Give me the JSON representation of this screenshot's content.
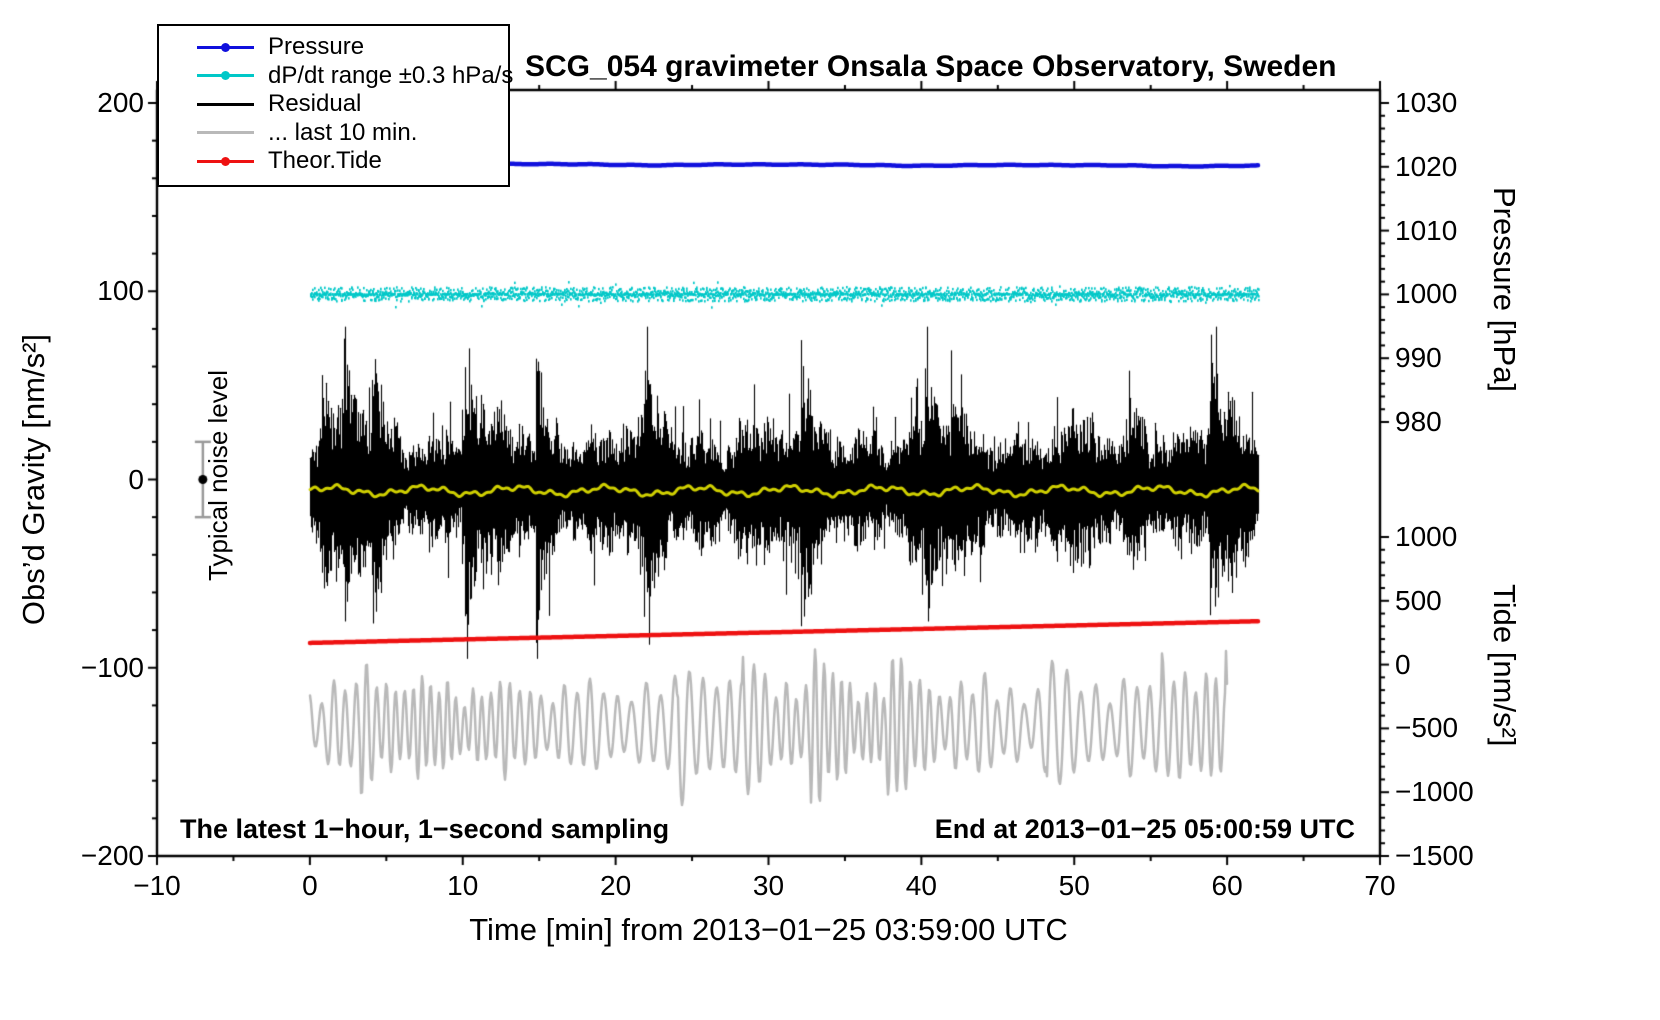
{
  "title": "SCG_054 gravimeter Onsala Space Observatory, Sweden",
  "legend": {
    "entries": [
      {
        "label": "Pressure",
        "color": "#1010dd",
        "marker": true
      },
      {
        "label": "dP/dt range ±0.3 hPa/s",
        "color": "#00c8c8",
        "marker": true
      },
      {
        "label": "Residual",
        "color": "#000000",
        "marker": false
      },
      {
        "label": "... last 10 min.",
        "color": "#b9b9b9",
        "marker": false
      },
      {
        "label": "Theor.Tide",
        "color": "#ee1111",
        "marker": true
      }
    ]
  },
  "annotations": {
    "noise_level": "Typical noise level",
    "sampling_info": "The latest 1−hour, 1−second sampling",
    "end_time": "End at 2013−01−25 05:00:59 UTC"
  },
  "chart_data": {
    "type": "line",
    "title": "SCG_054 gravimeter Onsala Space Observatory, Sweden",
    "axes": {
      "x": {
        "label": "Time [min] from 2013−01−25 03:59:00 UTC",
        "range": [
          -10,
          70
        ],
        "minor_step": 5,
        "ticks": [
          {
            "v": -10,
            "label": "−10"
          },
          {
            "v": 0,
            "label": "0"
          },
          {
            "v": 10,
            "label": "10"
          },
          {
            "v": 20,
            "label": "20"
          },
          {
            "v": 30,
            "label": "30"
          },
          {
            "v": 40,
            "label": "40"
          },
          {
            "v": 50,
            "label": "50"
          },
          {
            "v": 60,
            "label": "60"
          },
          {
            "v": 70,
            "label": "70"
          }
        ]
      },
      "gravity": {
        "label": "Obs’d Gravity [nm/s²]",
        "range": [
          -200,
          200
        ],
        "minor_step": 20,
        "ticks": [
          {
            "v": 200,
            "label": "200"
          },
          {
            "v": 100,
            "label": "100"
          },
          {
            "v": 0,
            "label": "0"
          },
          {
            "v": -100,
            "label": "−100"
          },
          {
            "v": -200,
            "label": "−200"
          }
        ]
      },
      "pressure": {
        "label": "Pressure [hPa]",
        "range": [
          980,
          1030
        ],
        "minor_step": 2,
        "ticks": [
          {
            "v": 1030,
            "label": "1030"
          },
          {
            "v": 1020,
            "label": "1020"
          },
          {
            "v": 1010,
            "label": "1010"
          },
          {
            "v": 1000,
            "label": "1000"
          },
          {
            "v": 990,
            "label": "990"
          },
          {
            "v": 980,
            "label": "980"
          }
        ]
      },
      "tide": {
        "label": "Tide [nm/s²]",
        "range": [
          -1500,
          1000
        ],
        "minor_step": 100,
        "ticks": [
          {
            "v": 1000,
            "label": "1000"
          },
          {
            "v": 500,
            "label": "500"
          },
          {
            "v": 0,
            "label": "0"
          },
          {
            "v": -500,
            "label": "−500"
          },
          {
            "v": -1000,
            "label": "−1000"
          },
          {
            "v": -1500,
            "label": "−1500"
          }
        ]
      }
    },
    "mapping": {
      "frame": {
        "l": 157,
        "r": 1380,
        "t": 90,
        "b": 856
      },
      "x": {
        "v1": -10,
        "p1": 157,
        "v2": 70,
        "p2": 1380
      },
      "gravity": {
        "v1": 200,
        "p1": 103,
        "v2": -200,
        "p2": 856
      },
      "pressure": {
        "v1": 1030,
        "p1": 103,
        "v2": 980,
        "p2": 422
      },
      "tide": {
        "v1": 1000,
        "p1": 537,
        "v2": -1500,
        "p2": 856
      }
    },
    "series": [
      {
        "name": "dP/dt range ±0.3 hPa/s",
        "axis": "pressure",
        "style": "scatterband",
        "color": "#00c8c8",
        "x": [
          0,
          62
        ],
        "center": 1000,
        "half": 0.55,
        "seed": 7
      },
      {
        "name": "Pressure",
        "axis": "pressure",
        "style": "line",
        "color": "#1010dd",
        "width": 4.5,
        "x": [
          0,
          62
        ],
        "start": 1020.5,
        "end": 1020.2,
        "wobble": 0.15,
        "seed": 11
      },
      {
        "name": "Residual",
        "axis": "gravity",
        "style": "noiseband",
        "color": "#000000",
        "x": [
          0,
          62
        ],
        "center": -5,
        "typical_amplitude": 25,
        "peak_amplitude": 82,
        "seed": 3
      },
      {
        "name": "... last 10 min.",
        "axis": "gravity",
        "style": "oscillation",
        "color": "#b9b9b9",
        "width": 2.5,
        "x": [
          0,
          60
        ],
        "center": -131,
        "typical_amplitude": 26,
        "seed": 9
      },
      {
        "name": "Residual smoothed",
        "axis": "gravity",
        "style": "wiggle",
        "color": "#cfcf00",
        "width": 3,
        "x": [
          0,
          62
        ],
        "center": -6,
        "seed": 5
      },
      {
        "name": "Theor.Tide",
        "axis": "tide",
        "style": "line",
        "color": "#ee1111",
        "width": 4.5,
        "x": [
          0,
          62
        ],
        "start": 170,
        "end": 340
      }
    ],
    "noise_bar": {
      "x": -7,
      "center": 0,
      "half": 20,
      "color": "#999999"
    }
  }
}
